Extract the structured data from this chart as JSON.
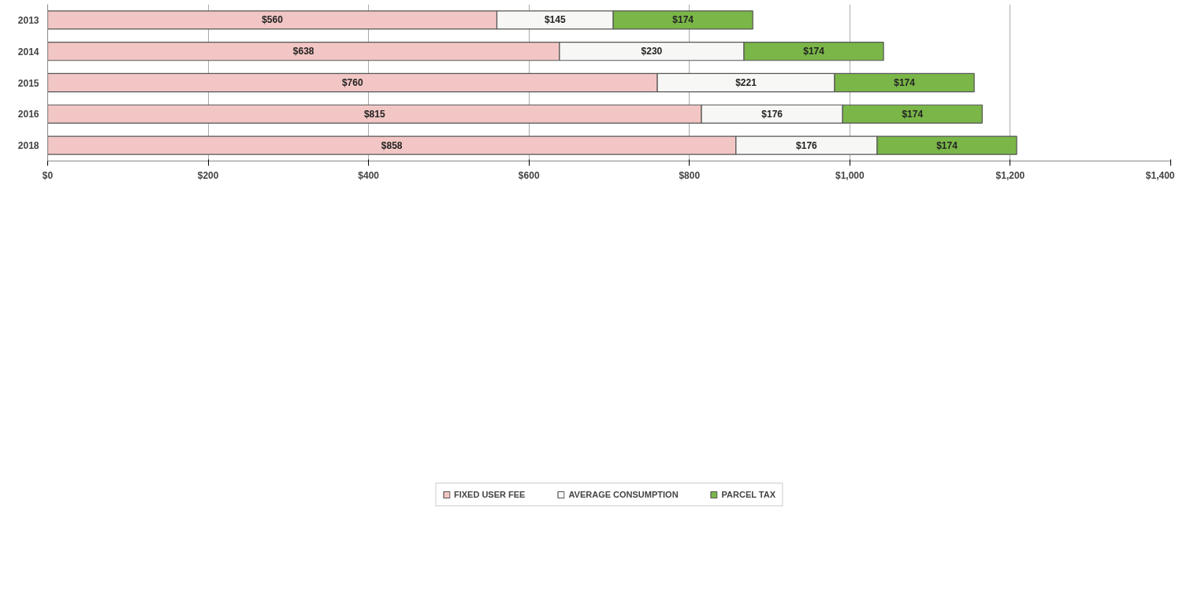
{
  "chart_data": {
    "type": "bar",
    "orientation": "horizontal",
    "stacked": true,
    "categories": [
      "2013",
      "2014",
      "2015",
      "2016",
      "2018"
    ],
    "series": [
      {
        "name": "FIXED USER FEE",
        "color": "#f2c6c4",
        "values": [
          560,
          638,
          760,
          815,
          858
        ],
        "value_labels": [
          "$560",
          "$638",
          "$760",
          "$815",
          "$858"
        ]
      },
      {
        "name": "AVERAGE CONSUMPTION",
        "color": "#f7f7f5",
        "values": [
          145,
          230,
          221,
          176,
          176
        ],
        "value_labels": [
          "$145",
          "$230",
          "$221",
          "$176",
          "$176"
        ]
      },
      {
        "name": "PARCEL TAX",
        "color": "#7ab648",
        "values": [
          174,
          174,
          174,
          174,
          174
        ],
        "value_labels": [
          "$174",
          "$174",
          "$174",
          "$174",
          "$174"
        ]
      }
    ],
    "xlim": [
      0,
      1400
    ],
    "xticks": [
      {
        "value": 0,
        "label": "$0"
      },
      {
        "value": 200,
        "label": "$200"
      },
      {
        "value": 400,
        "label": "$400"
      },
      {
        "value": 600,
        "label": "$600"
      },
      {
        "value": 800,
        "label": "$800"
      },
      {
        "value": 1000,
        "label": "$1,000"
      },
      {
        "value": 1200,
        "label": "$1,200"
      },
      {
        "value": 1400,
        "label": "$1,400"
      }
    ],
    "grid": "x",
    "legend": "bottom"
  }
}
